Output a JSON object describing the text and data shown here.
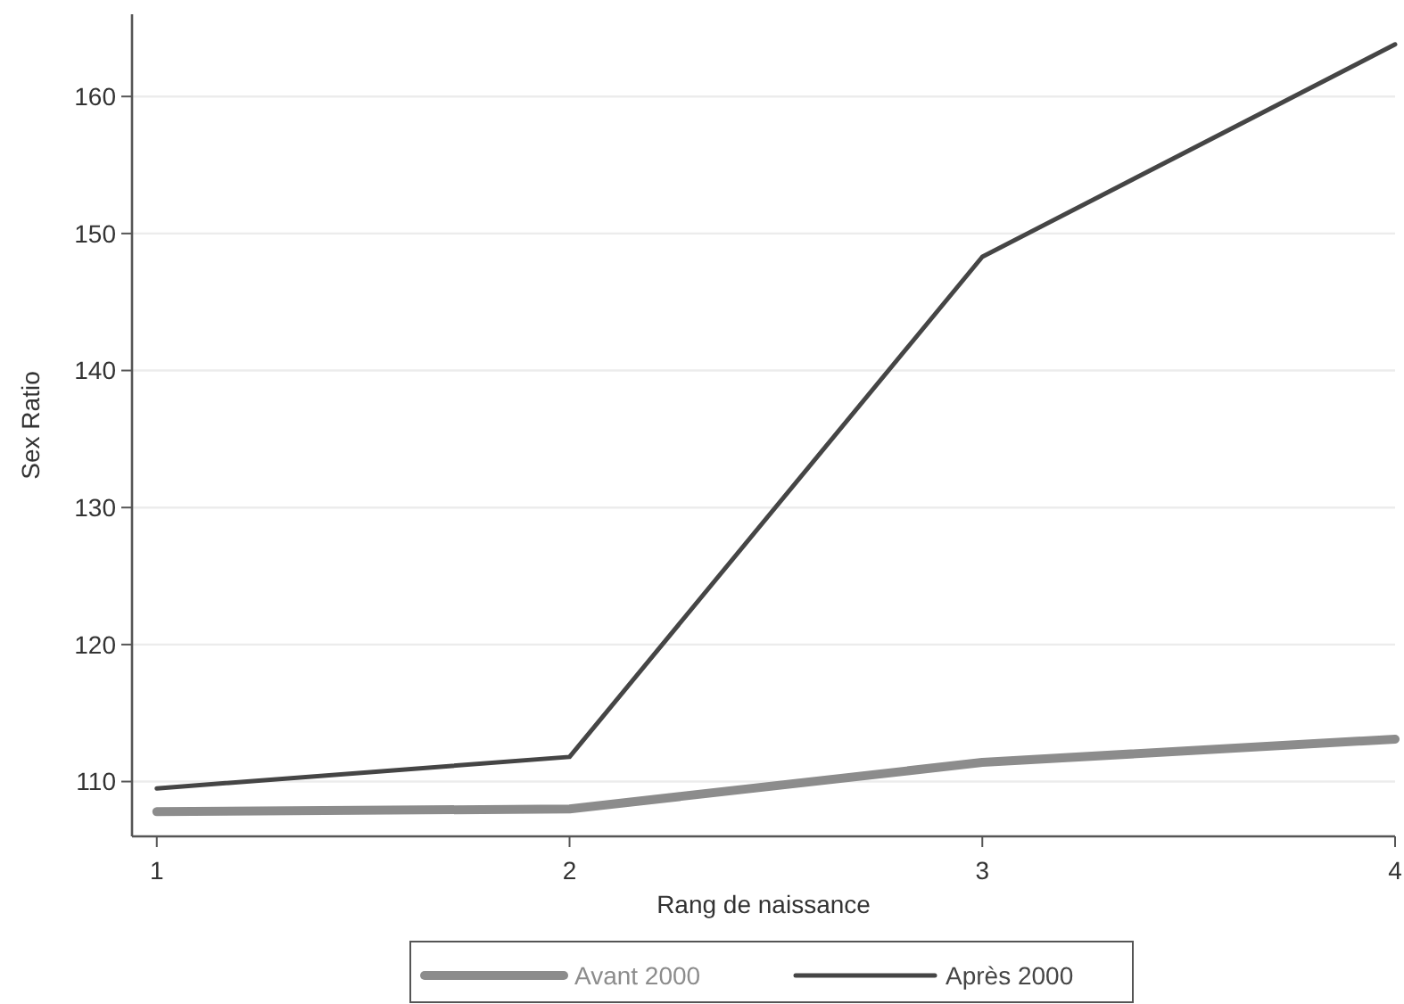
{
  "chart_data": {
    "type": "line",
    "xlabel": "Rang de naissance",
    "ylabel": "Sex Ratio",
    "x": [
      1,
      2,
      3,
      4
    ],
    "series": [
      {
        "name": "Avant 2000",
        "color": "#8c8c8c",
        "values": [
          107.8,
          108.0,
          111.4,
          113.1
        ]
      },
      {
        "name": "Après 2000",
        "color": "#454545",
        "values": [
          109.5,
          111.8,
          148.3,
          163.8
        ]
      }
    ],
    "xlim": [
      0.94,
      4
    ],
    "xticks": [
      1,
      2,
      3,
      4
    ],
    "ylim": [
      106,
      166
    ],
    "yticks": [
      110,
      120,
      130,
      140,
      150,
      160
    ],
    "grid": "y",
    "legend": "bottom",
    "marker": "none",
    "line_style": "solid"
  }
}
